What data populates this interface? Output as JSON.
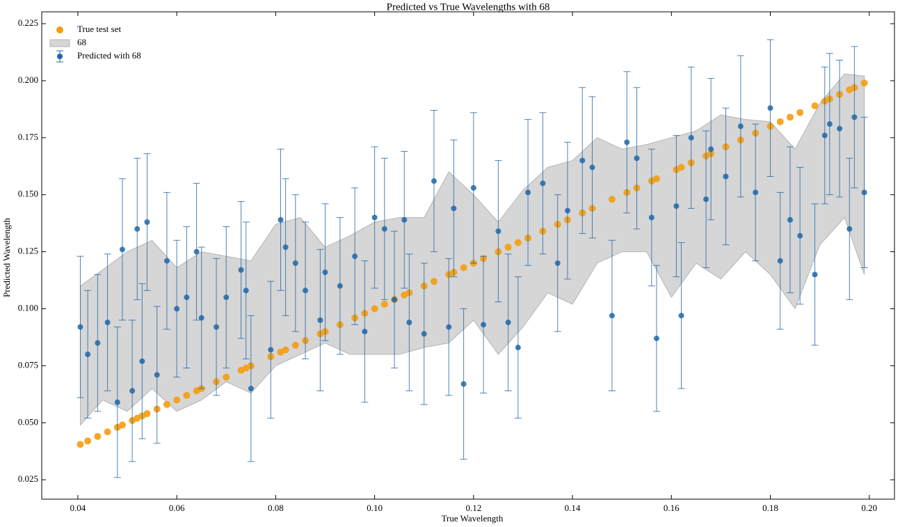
{
  "chart_data": {
    "type": "scatter",
    "title": "Predicted vs True Wavelengths with 68",
    "x_label": "True Wavelength",
    "y_label": "Predicted Wavelength",
    "xlim": [
      0.0327,
      0.2051
    ],
    "ylim": [
      0.0165,
      0.2302
    ],
    "xticks": [
      0.04,
      0.06,
      0.08,
      {
        "value": 0.1,
        "label": "0.10"
      },
      0.12,
      0.14,
      0.16,
      0.18,
      {
        "value": 0.2,
        "label": "0.20"
      }
    ],
    "yticks": [
      0.025,
      {
        "value": 0.05,
        "label": "0.050"
      },
      0.075,
      {
        "value": 0.1,
        "label": "0.100"
      },
      0.125,
      {
        "value": 0.15,
        "label": "0.150"
      },
      0.175,
      {
        "value": 0.2,
        "label": "0.200"
      },
      0.225
    ],
    "legend": "upper left",
    "series": [
      {
        "name": "True test set",
        "color": "#f59d0e",
        "x": [
          0.0405,
          0.042,
          0.044,
          0.046,
          0.048,
          0.049,
          0.051,
          0.052,
          0.053,
          0.054,
          0.056,
          0.058,
          0.06,
          0.062,
          0.064,
          0.065,
          0.068,
          0.07,
          0.073,
          0.074,
          0.075,
          0.079,
          0.081,
          0.082,
          0.084,
          0.086,
          0.089,
          0.09,
          0.093,
          0.096,
          0.098,
          0.1,
          0.102,
          0.104,
          0.106,
          0.107,
          0.11,
          0.112,
          0.115,
          0.116,
          0.118,
          0.12,
          0.122,
          0.125,
          0.127,
          0.129,
          0.131,
          0.134,
          0.137,
          0.139,
          0.142,
          0.144,
          0.148,
          0.151,
          0.153,
          0.156,
          0.157,
          0.161,
          0.162,
          0.164,
          0.167,
          0.168,
          0.171,
          0.174,
          0.177,
          0.18,
          0.182,
          0.184,
          0.186,
          0.189,
          0.191,
          0.192,
          0.194,
          0.196,
          0.197,
          0.199
        ],
        "values": [
          0.0405,
          0.042,
          0.044,
          0.046,
          0.048,
          0.049,
          0.051,
          0.052,
          0.053,
          0.054,
          0.056,
          0.058,
          0.06,
          0.062,
          0.064,
          0.065,
          0.068,
          0.07,
          0.073,
          0.074,
          0.075,
          0.079,
          0.081,
          0.082,
          0.084,
          0.086,
          0.089,
          0.09,
          0.093,
          0.096,
          0.098,
          0.1,
          0.102,
          0.104,
          0.106,
          0.107,
          0.11,
          0.112,
          0.115,
          0.116,
          0.118,
          0.12,
          0.122,
          0.125,
          0.127,
          0.129,
          0.131,
          0.134,
          0.137,
          0.139,
          0.142,
          0.144,
          0.148,
          0.151,
          0.153,
          0.156,
          0.157,
          0.161,
          0.162,
          0.164,
          0.167,
          0.168,
          0.171,
          0.174,
          0.177,
          0.18,
          0.182,
          0.184,
          0.186,
          0.189,
          0.191,
          0.192,
          0.194,
          0.196,
          0.197,
          0.199
        ]
      },
      {
        "name": "68",
        "color": "#b4b4b4",
        "x": [
          0.0405,
          0.045,
          0.05,
          0.055,
          0.06,
          0.065,
          0.07,
          0.075,
          0.08,
          0.085,
          0.09,
          0.095,
          0.1,
          0.105,
          0.11,
          0.115,
          0.12,
          0.125,
          0.13,
          0.135,
          0.14,
          0.145,
          0.15,
          0.155,
          0.16,
          0.165,
          0.17,
          0.175,
          0.18,
          0.185,
          0.19,
          0.195,
          0.199
        ],
        "lower": [
          0.049,
          0.06,
          0.055,
          0.065,
          0.055,
          0.06,
          0.068,
          0.063,
          0.075,
          0.08,
          0.085,
          0.08,
          0.08,
          0.08,
          0.083,
          0.085,
          0.095,
          0.08,
          0.092,
          0.107,
          0.102,
          0.12,
          0.125,
          0.125,
          0.105,
          0.12,
          0.113,
          0.125,
          0.115,
          0.1,
          0.128,
          0.14,
          0.115
        ],
        "upper": [
          0.11,
          0.117,
          0.125,
          0.13,
          0.118,
          0.125,
          0.123,
          0.121,
          0.137,
          0.14,
          0.127,
          0.132,
          0.138,
          0.14,
          0.14,
          0.16,
          0.15,
          0.138,
          0.152,
          0.162,
          0.165,
          0.175,
          0.17,
          0.172,
          0.175,
          0.178,
          0.185,
          0.183,
          0.182,
          0.17,
          0.19,
          0.203,
          0.202
        ]
      },
      {
        "name": "Predicted with 68",
        "color": "#1f66a8",
        "x": [
          0.0405,
          0.042,
          0.044,
          0.046,
          0.048,
          0.049,
          0.051,
          0.052,
          0.053,
          0.054,
          0.056,
          0.058,
          0.06,
          0.062,
          0.064,
          0.065,
          0.068,
          0.07,
          0.073,
          0.074,
          0.075,
          0.079,
          0.081,
          0.082,
          0.084,
          0.086,
          0.089,
          0.09,
          0.093,
          0.096,
          0.098,
          0.1,
          0.102,
          0.104,
          0.106,
          0.107,
          0.11,
          0.112,
          0.115,
          0.116,
          0.118,
          0.12,
          0.122,
          0.125,
          0.127,
          0.129,
          0.131,
          0.134,
          0.137,
          0.139,
          0.142,
          0.144,
          0.148,
          0.151,
          0.153,
          0.156,
          0.157,
          0.161,
          0.162,
          0.164,
          0.167,
          0.168,
          0.171,
          0.174,
          0.177,
          0.18,
          0.182,
          0.184,
          0.186,
          0.189,
          0.191,
          0.192,
          0.194,
          0.196,
          0.197,
          0.199
        ],
        "values": [
          0.092,
          0.08,
          0.085,
          0.094,
          0.059,
          0.126,
          0.064,
          0.135,
          0.077,
          0.138,
          0.071,
          0.121,
          0.1,
          0.105,
          0.125,
          0.096,
          0.092,
          0.105,
          0.117,
          0.108,
          0.065,
          0.082,
          0.139,
          0.127,
          0.12,
          0.108,
          0.095,
          0.116,
          0.11,
          0.123,
          0.09,
          0.14,
          0.135,
          0.104,
          0.139,
          0.094,
          0.089,
          0.156,
          0.092,
          0.144,
          0.067,
          0.153,
          0.093,
          0.134,
          0.094,
          0.083,
          0.151,
          0.155,
          0.12,
          0.143,
          0.165,
          0.162,
          0.097,
          0.173,
          0.166,
          0.14,
          0.087,
          0.145,
          0.097,
          0.175,
          0.148,
          0.17,
          0.158,
          0.18,
          0.151,
          0.188,
          0.121,
          0.139,
          0.132,
          0.115,
          0.176,
          0.181,
          0.179,
          0.135,
          0.184,
          0.151
        ],
        "errors": [
          0.031,
          0.028,
          0.03,
          0.03,
          0.033,
          0.031,
          0.031,
          0.031,
          0.034,
          0.03,
          0.03,
          0.03,
          0.03,
          0.031,
          0.03,
          0.031,
          0.03,
          0.031,
          0.03,
          0.03,
          0.032,
          0.03,
          0.031,
          0.03,
          0.03,
          0.03,
          0.031,
          0.03,
          0.03,
          0.03,
          0.031,
          0.031,
          0.031,
          0.03,
          0.03,
          0.03,
          0.031,
          0.031,
          0.03,
          0.03,
          0.033,
          0.033,
          0.03,
          0.031,
          0.03,
          0.031,
          0.032,
          0.031,
          0.03,
          0.03,
          0.032,
          0.031,
          0.033,
          0.031,
          0.031,
          0.03,
          0.032,
          0.031,
          0.032,
          0.031,
          0.03,
          0.031,
          0.03,
          0.031,
          0.03,
          0.03,
          0.03,
          0.032,
          0.03,
          0.031,
          0.03,
          0.031,
          0.03,
          0.031,
          0.031,
          0.033
        ]
      }
    ]
  }
}
